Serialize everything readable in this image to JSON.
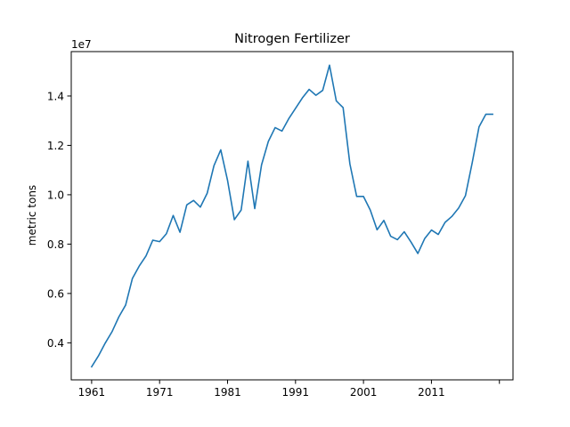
{
  "chart_data": {
    "type": "line",
    "title": "Nitrogen Fertilizer",
    "xlabel": "",
    "ylabel": "metric tons",
    "y_offset_label": "1e7",
    "y_scale_factor": 10000000,
    "xlim": [
      1958,
      2023
    ],
    "ylim": [
      0.25,
      1.58
    ],
    "x_ticks": [
      1961,
      1971,
      1981,
      1991,
      2001,
      2011,
      2021
    ],
    "x_tick_labels": [
      "1961",
      "1971",
      "1981",
      "1991",
      "2001",
      "2011",
      ""
    ],
    "y_ticks": [
      0.4,
      0.6,
      0.8,
      1.0,
      1.2,
      1.4
    ],
    "y_tick_labels": [
      "0.4",
      "0.6",
      "0.8",
      "1.0",
      "1.2",
      "1.4"
    ],
    "grid": false,
    "line_color": "#1f77b4",
    "series": [
      {
        "x": [
          1961,
          1962,
          1963,
          1964,
          1965,
          1966,
          1967,
          1968,
          1969,
          1970,
          1971,
          1972,
          1973,
          1974,
          1975,
          1976,
          1977,
          1978,
          1979,
          1980,
          1981,
          1982,
          1983,
          1984,
          1985,
          1986,
          1987,
          1988,
          1989,
          1990,
          1991,
          1992,
          1993,
          1994,
          1995,
          1996,
          1997,
          1998,
          1999,
          2000,
          2001,
          2002,
          2003,
          2004,
          2005,
          2006,
          2007,
          2008,
          2009,
          2010,
          2011,
          2012,
          2013,
          2014,
          2015,
          2016,
          2017,
          2018,
          2019,
          2020
        ],
        "values": [
          0.303,
          0.347,
          0.399,
          0.445,
          0.505,
          0.553,
          0.661,
          0.711,
          0.752,
          0.816,
          0.81,
          0.842,
          0.916,
          0.848,
          0.959,
          0.977,
          0.95,
          1.006,
          1.118,
          1.182,
          1.058,
          0.899,
          0.938,
          1.136,
          0.944,
          1.121,
          1.216,
          1.272,
          1.258,
          1.308,
          1.35,
          1.392,
          1.427,
          1.403,
          1.423,
          1.525,
          1.38,
          1.353,
          1.125,
          0.993,
          0.993,
          0.938,
          0.858,
          0.896,
          0.832,
          0.818,
          0.85,
          0.808,
          0.762,
          0.822,
          0.857,
          0.839,
          0.888,
          0.912,
          0.946,
          0.996,
          1.13,
          1.275,
          1.326,
          1.326
        ]
      }
    ]
  }
}
